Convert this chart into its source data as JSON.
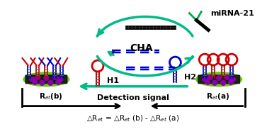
{
  "bg_color": "#ffffff",
  "mirna_label": "miRNA-21",
  "cha_label": "CHA",
  "h1_label": "H1",
  "h2_label": "H2",
  "ret_b_label": "R$_{et}$(b)",
  "ret_a_label": "R$_{et}$(a)",
  "detection_label": "Detection signal",
  "formula_label": "△R$_{et}$ = △R$_{et}$ (b) - △R$_{et}$ (a)",
  "arrow_color": "#00bb88",
  "text_color": "#000000",
  "green_ellipse_color": "#66cc00",
  "dark_material_color": "#111111",
  "purple_dot_color": "#8800aa",
  "red_color": "#cc0000",
  "blue_color": "#0000cc",
  "mirna_green_color": "#00aa44"
}
